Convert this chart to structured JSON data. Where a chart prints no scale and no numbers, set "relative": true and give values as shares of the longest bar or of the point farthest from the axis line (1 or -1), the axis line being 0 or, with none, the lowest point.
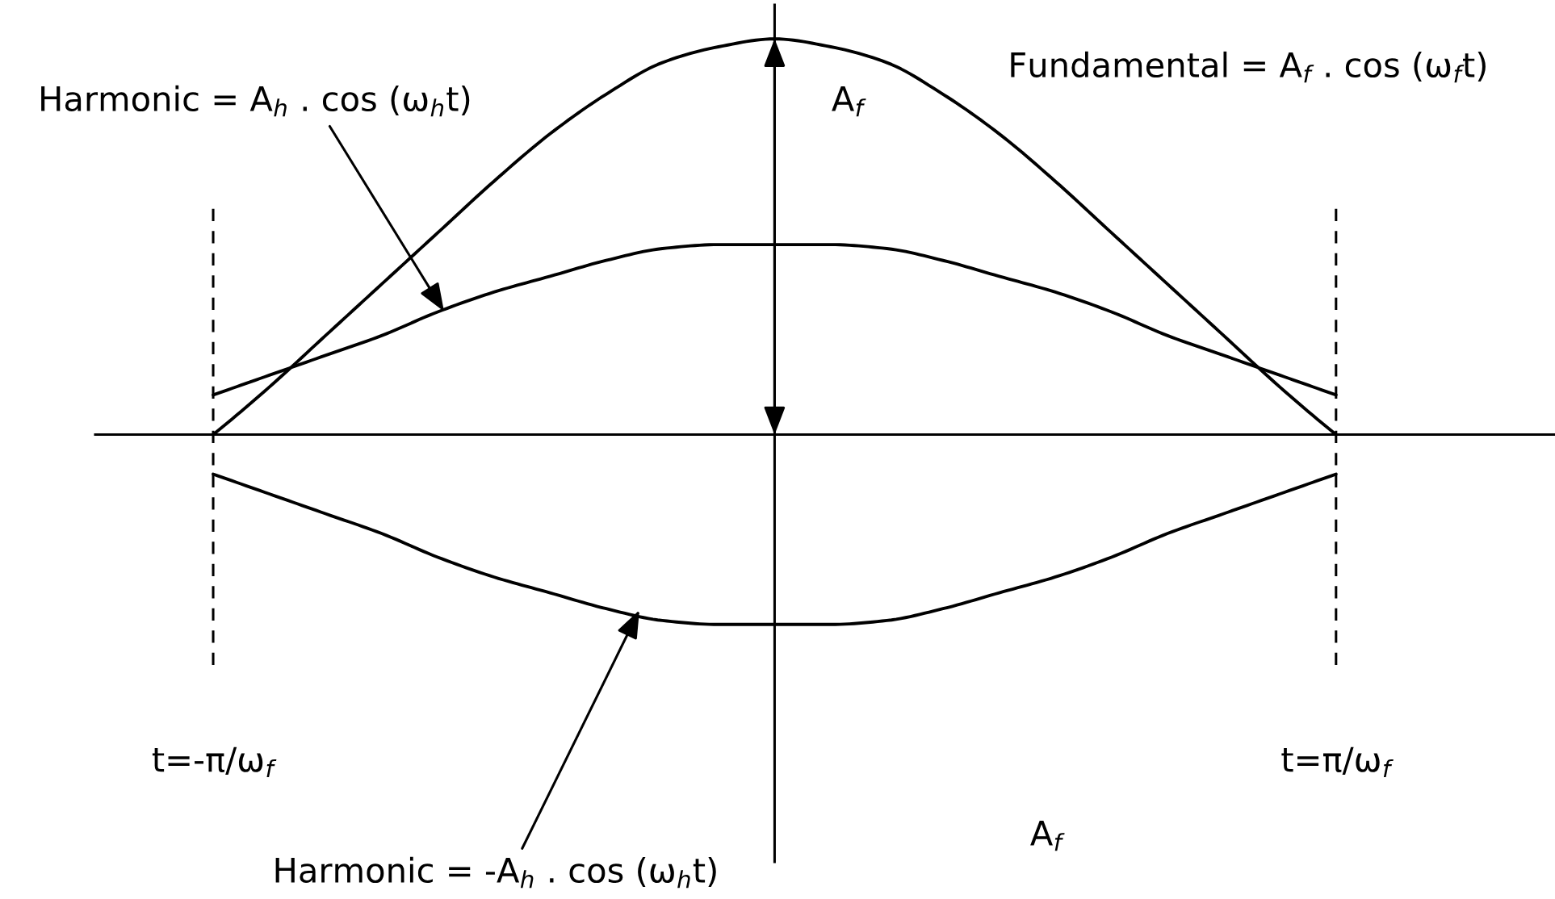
{
  "chart_data": {
    "type": "line",
    "relative": true,
    "tick_labels": "x",
    "categories": [
      "t=-π/ω$_{f}$",
      null,
      null,
      null,
      null,
      null,
      null,
      null,
      null,
      null,
      null,
      null,
      null,
      null,
      null,
      null,
      null,
      null,
      null,
      null,
      "t=π/ω$_{f}$"
    ],
    "series": [
      {
        "color": "#000000",
        "values": [
          0,
          0.12,
          0.25,
          0.38,
          0.51,
          0.64,
          0.76,
          0.86,
          0.94,
          0.98,
          1,
          0.98,
          0.94,
          0.86,
          0.76,
          0.64,
          0.51,
          0.38,
          0.25,
          0.12,
          0
        ]
      },
      {
        "color": "#000000",
        "values": [
          0.1,
          0.15,
          0.2,
          0.25,
          0.31,
          0.36,
          0.4,
          0.44,
          0.47,
          0.48,
          0.48,
          0.48,
          0.47,
          0.44,
          0.4,
          0.36,
          0.31,
          0.25,
          0.2,
          0.15,
          0.1
        ]
      },
      {
        "color": "#000000",
        "values": [
          -0.1,
          -0.15,
          -0.2,
          -0.25,
          -0.31,
          -0.36,
          -0.4,
          -0.44,
          -0.47,
          -0.48,
          -0.48,
          -0.48,
          -0.47,
          -0.44,
          -0.4,
          -0.36,
          -0.31,
          -0.25,
          -0.2,
          -0.15,
          -0.1
        ]
      }
    ],
    "ref_lines": [
      {
        "axis": "x",
        "value": "t=-π/ω$_{f}$",
        "line_style": "dashed",
        "color": "#000000"
      },
      {
        "axis": "x",
        "value": "t=π/ω$_{f}$",
        "line_style": "dashed",
        "color": "#000000"
      }
    ],
    "annotations": [
      "Harmonic = A$_{h}$ . cos (ω$_{h}$t)",
      "Fundamental = A$_{f}$ . cos (ω$_{f}$t)",
      "A$_{f}$",
      "Harmonic = -A$_{h}$ . cos (ω$_{h}$t)",
      "A$_{f}$"
    ]
  }
}
